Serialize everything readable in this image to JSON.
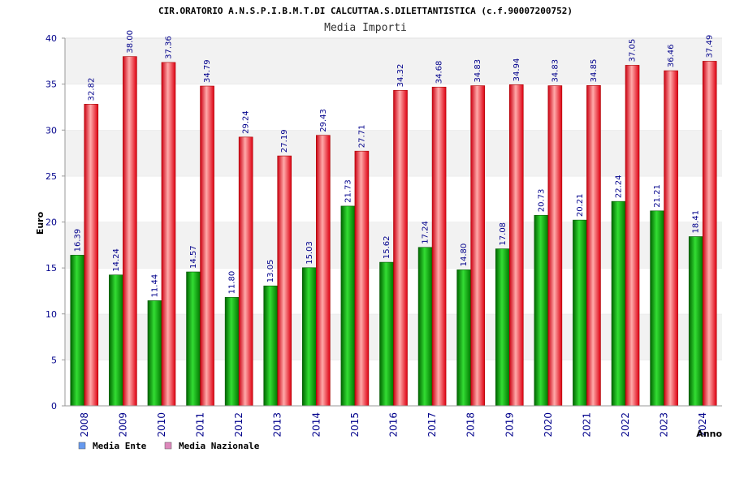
{
  "chart_data": {
    "type": "bar",
    "title": "CIR.ORATORIO A.N.S.P.I.B.M.T.DI CALCUTTAA.S.DILETTANTISTICA (c.f.90007200752)",
    "subtitle": "Media Importi",
    "xlabel": "Anno",
    "ylabel": "Euro",
    "ylim": [
      0,
      40
    ],
    "yticks": [
      0,
      5,
      10,
      15,
      20,
      25,
      30,
      35,
      40
    ],
    "grid": true,
    "legend_position": "bottom-left",
    "categories": [
      "2008",
      "2009",
      "2010",
      "2011",
      "2012",
      "2013",
      "2014",
      "2015",
      "2016",
      "2017",
      "2018",
      "2019",
      "2020",
      "2021",
      "2022",
      "2023",
      "2024"
    ],
    "series": [
      {
        "name": "Media Ente",
        "color": "#009900",
        "legend_color": "#6699ee",
        "values": [
          16.39,
          14.24,
          11.44,
          14.57,
          11.8,
          13.05,
          15.03,
          21.73,
          15.62,
          17.24,
          14.8,
          17.08,
          20.73,
          20.21,
          22.24,
          21.21,
          18.41
        ],
        "labels": [
          "16.39",
          "14.24",
          "11.44",
          "14.57",
          "11.80",
          "13.05",
          "15.03",
          "21.73",
          "15.62",
          "17.24",
          "14.80",
          "17.08",
          "20.73",
          "20.21",
          "22.24",
          "21.21",
          "18.41"
        ]
      },
      {
        "name": "Media Nazionale",
        "color": "#ee2233",
        "legend_color": "#dd88bb",
        "values": [
          32.82,
          38.0,
          37.36,
          34.79,
          29.24,
          27.19,
          29.43,
          27.71,
          34.32,
          34.68,
          34.83,
          34.94,
          34.83,
          34.85,
          37.05,
          36.46,
          37.49
        ],
        "labels": [
          "32.82",
          "38.00",
          "37.36",
          "34.79",
          "29.24",
          "27.19",
          "29.43",
          "27.71",
          "34.32",
          "34.68",
          "34.83",
          "34.94",
          "34.83",
          "34.85",
          "37.05",
          "36.46",
          "37.49"
        ]
      }
    ]
  }
}
